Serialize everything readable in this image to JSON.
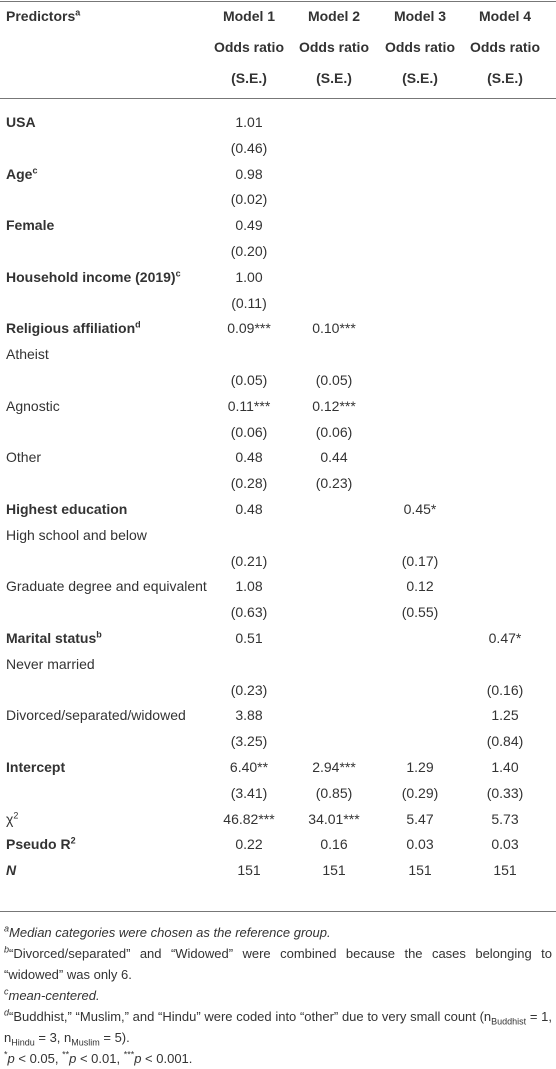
{
  "header": {
    "predictors": "Predictors",
    "predictors_sup": "a",
    "models": [
      {
        "name": "Model 1",
        "stat": "Odds ratio",
        "se": "(S.E.)"
      },
      {
        "name": "Model 2",
        "stat": "Odds ratio",
        "se": "(S.E.)"
      },
      {
        "name": "Model 3",
        "stat": "Odds ratio",
        "se": "(S.E.)"
      },
      {
        "name": "Model 4",
        "stat": "Odds ratio",
        "se": "(S.E.)"
      }
    ]
  },
  "rows": [
    {
      "label": "USA",
      "bold": true,
      "cells": [
        "1.01",
        null,
        null,
        null
      ]
    },
    {
      "cells": [
        "(0.46)",
        null,
        null,
        null
      ]
    },
    {
      "label": "Age",
      "sup": "c",
      "bold": true,
      "cells": [
        "0.98",
        null,
        null,
        null
      ]
    },
    {
      "cells": [
        "(0.02)",
        null,
        null,
        null
      ]
    },
    {
      "label": "Female",
      "bold": true,
      "cells": [
        "0.49",
        null,
        null,
        null
      ]
    },
    {
      "cells": [
        "(0.20)",
        null,
        null,
        null
      ]
    },
    {
      "label": "Household income (2019)",
      "sup": "c",
      "bold": true,
      "cells": [
        "1.00",
        null,
        null,
        null
      ]
    },
    {
      "cells": [
        "(0.11)",
        null,
        null,
        null
      ]
    },
    {
      "label": "Religious affiliation",
      "sup": "d",
      "bold": true,
      "cells": [
        "0.09***",
        "0.10***",
        null,
        null
      ]
    },
    {
      "label": "Atheist",
      "cells": [
        null,
        null,
        null,
        null
      ]
    },
    {
      "cells": [
        "(0.05)",
        "(0.05)",
        null,
        null
      ]
    },
    {
      "label": "Agnostic",
      "cells": [
        "0.11***",
        "0.12***",
        null,
        null
      ]
    },
    {
      "cells": [
        "(0.06)",
        "(0.06)",
        null,
        null
      ]
    },
    {
      "label": "Other",
      "cells": [
        "0.48",
        "0.44",
        null,
        null
      ]
    },
    {
      "cells": [
        "(0.28)",
        "(0.23)",
        null,
        null
      ]
    },
    {
      "label": "Highest education",
      "bold": true,
      "cells": [
        "0.48",
        null,
        "0.45*",
        null
      ]
    },
    {
      "label": "High school and below",
      "cells": [
        null,
        null,
        null,
        null
      ]
    },
    {
      "cells": [
        "(0.21)",
        null,
        "(0.17)",
        null
      ]
    },
    {
      "label": "Graduate degree and equivalent",
      "cells": [
        "1.08",
        null,
        "0.12",
        null
      ]
    },
    {
      "cells": [
        "(0.63)",
        null,
        "(0.55)",
        null
      ]
    },
    {
      "label": "Marital status",
      "sup": "b",
      "bold": true,
      "cells": [
        "0.51",
        null,
        null,
        "0.47*"
      ]
    },
    {
      "label": "Never married",
      "cells": [
        null,
        null,
        null,
        null
      ]
    },
    {
      "cells": [
        "(0.23)",
        null,
        null,
        "(0.16)"
      ]
    },
    {
      "label": "Divorced/separated/widowed",
      "cells": [
        "3.88",
        null,
        null,
        "1.25"
      ]
    },
    {
      "cells": [
        "(3.25)",
        null,
        null,
        "(0.84)"
      ]
    },
    {
      "label": "Intercept",
      "bold": true,
      "cells": [
        "6.40**",
        "2.94***",
        "1.29",
        "1.40"
      ]
    },
    {
      "cells": [
        "(3.41)",
        "(0.85)",
        "(0.29)",
        "(0.33)"
      ]
    },
    {
      "label": "χ",
      "sup": "2",
      "cells": [
        "46.82***",
        "34.01***",
        "5.47",
        "5.73"
      ]
    },
    {
      "label": "Pseudo R",
      "sup": "2",
      "bold": true,
      "cells": [
        "0.22",
        "0.16",
        "0.03",
        "0.03"
      ]
    },
    {
      "label": "N",
      "bold": true,
      "italic": true,
      "cells": [
        "151",
        "151",
        "151",
        "151"
      ]
    }
  ],
  "footnotes": [
    {
      "mark": "a",
      "italic": true,
      "parts": [
        {
          "text": "Median categories were chosen as the reference group."
        }
      ]
    },
    {
      "mark": "b",
      "parts": [
        {
          "text": "“Divorced/separated” and “Widowed” were combined because the cases belonging to “widowed” was only 6."
        }
      ]
    },
    {
      "mark": "c",
      "italic": true,
      "parts": [
        {
          "text": "mean-centered."
        }
      ]
    },
    {
      "mark": "d",
      "parts": [
        {
          "text": "“Buddhist,” “Muslim,” and “Hindu” were coded into “other” due to very small count (n"
        },
        {
          "sub": "Buddhist"
        },
        {
          "text": " = 1, n"
        },
        {
          "sub": "Hindu"
        },
        {
          "text": " = 3, n"
        },
        {
          "sub": "Muslim"
        },
        {
          "text": " = 5)."
        }
      ]
    },
    {
      "parts": [
        {
          "sup": "*"
        },
        {
          "i": "p"
        },
        {
          "text": " < 0.05, "
        },
        {
          "sup": "**"
        },
        {
          "i": "p"
        },
        {
          "text": " < 0.01, "
        },
        {
          "sup": "***"
        },
        {
          "i": "p"
        },
        {
          "text": " < 0.001."
        }
      ]
    }
  ]
}
